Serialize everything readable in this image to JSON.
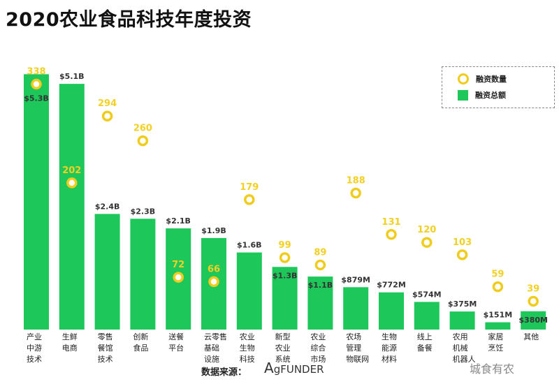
{
  "chart_data": {
    "type": "bar",
    "title": "2020农业食品科技年度投资",
    "categories": [
      "产业\n中游\n技术",
      "生鲜\n电商",
      "零售\n餐馆\n技术",
      "创新\n食品",
      "送餐\n平台",
      "云零售\n基础\n设施",
      "农业\n生物\n科技",
      "新型\n农业\n系统",
      "农业\n综合\n市场",
      "农场\n管理\n物联网",
      "生物\n能源\n材料",
      "线上\n备餐",
      "农用\n机械\n机器人",
      "家居\n烹饪",
      "其他"
    ],
    "series": [
      {
        "name": "融资总额",
        "unit": "B USD",
        "type": "bar",
        "values": [
          5.3,
          5.1,
          2.4,
          2.3,
          2.1,
          1.9,
          1.6,
          1.3,
          1.1,
          0.879,
          0.772,
          0.574,
          0.375,
          0.151,
          0.38
        ],
        "labels": [
          "$5.3B",
          "$5.1B",
          "$2.4B",
          "$2.3B",
          "$2.1B",
          "$1.9B",
          "$1.6B",
          "$1.3B",
          "$1.1B",
          "$879M",
          "$772M",
          "$574M",
          "$375M",
          "$151M",
          "$380M"
        ]
      },
      {
        "name": "融资数量",
        "type": "scatter",
        "values": [
          338,
          202,
          294,
          260,
          72,
          66,
          179,
          99,
          89,
          188,
          131,
          120,
          103,
          59,
          39
        ]
      }
    ],
    "legend": [
      "融资数量",
      "融资总额"
    ],
    "legend_position": "top-right",
    "colors": {
      "bar": "#1ec75a",
      "marker": "#f0cc1e",
      "count_label": "#f2d024"
    }
  },
  "footer": {
    "source_label": "数据来源：",
    "logo_text": "AgFUNDER",
    "watermark": "城食有农"
  }
}
